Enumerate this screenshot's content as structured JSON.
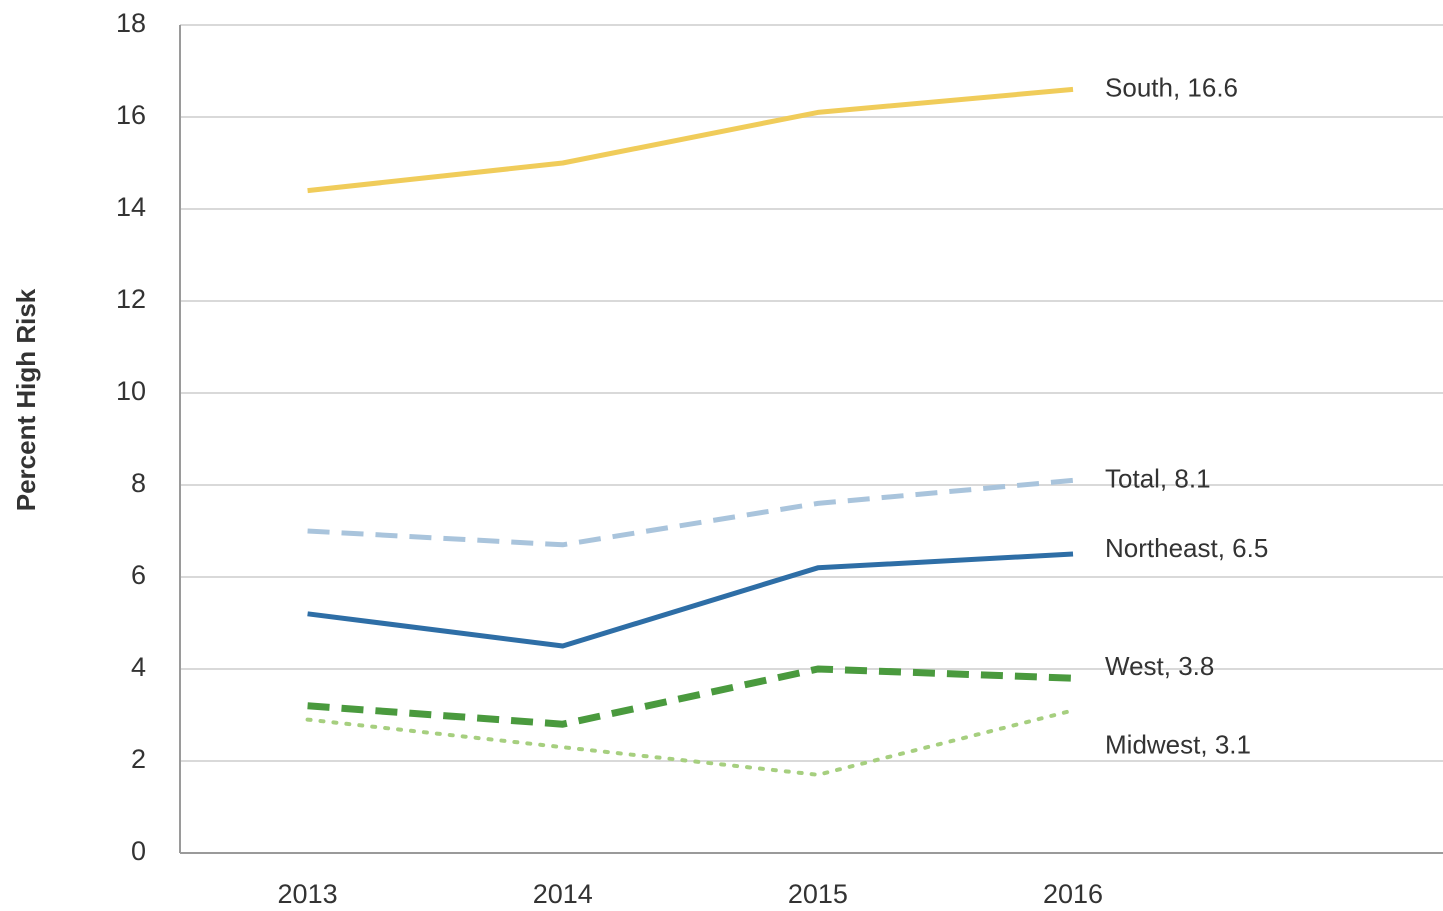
{
  "chart_data": {
    "type": "line",
    "y_axis_label": "Percent High Risk",
    "categories": [
      "2013",
      "2014",
      "2015",
      "2016"
    ],
    "ylim": [
      0,
      18
    ],
    "yticks": [
      0,
      2,
      4,
      6,
      8,
      10,
      12,
      14,
      16,
      18
    ],
    "grid": true,
    "series": [
      {
        "name": "South",
        "label": "South, 16.6",
        "color": "#f0cc5a",
        "dash": "solid",
        "values": [
          14.4,
          15.0,
          16.1,
          16.6
        ]
      },
      {
        "name": "Total",
        "label": "Total, 8.1",
        "color": "#a9c4dc",
        "dash": "dashed",
        "values": [
          7.0,
          6.7,
          7.6,
          8.1
        ]
      },
      {
        "name": "Northeast",
        "label": "Northeast, 6.5",
        "color": "#2e6ea6",
        "dash": "solid",
        "values": [
          5.2,
          4.5,
          6.2,
          6.5
        ]
      },
      {
        "name": "West",
        "label": "West, 3.8",
        "color": "#4a9a3e",
        "dash": "dashed",
        "values": [
          3.2,
          2.8,
          4.0,
          3.8
        ]
      },
      {
        "name": "Midwest",
        "label": "Midwest, 3.1",
        "color": "#a6cf7f",
        "dash": "dotted",
        "values": [
          2.9,
          2.3,
          1.7,
          3.1
        ]
      }
    ]
  }
}
